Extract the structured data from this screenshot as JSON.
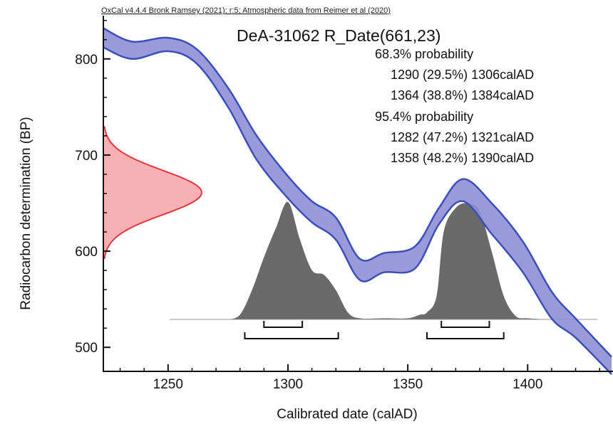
{
  "chart_data": {
    "type": "area",
    "credit": "OxCal v4.4.4 Bronk Ramsey (2021); r:5; Atmospheric data from Reimer et al (2020)",
    "title": "DeA-31062 R_Date(661,23)",
    "xlabel": "Calibrated date (calAD)",
    "ylabel": "Radiocarbon determination (BP)",
    "xlim": [
      1223,
      1435
    ],
    "ylim": [
      475,
      845
    ],
    "xticks": [
      1250,
      1300,
      1350,
      1400
    ],
    "yticks": [
      500,
      600,
      700,
      800
    ],
    "probability_lines": [
      "68.3% probability",
      "1290 (29.5%) 1306calAD",
      "1364 (38.8%) 1384calAD",
      "95.4% probability",
      "1282 (47.2%) 1321calAD",
      "1358 (48.2%) 1390calAD"
    ],
    "colors": {
      "calibration_band": "#8f8fd6",
      "calibration_edge": "#3a4fb8",
      "radiocarbon_fill": "#f5a3a8",
      "radiocarbon_line": "#e8353b",
      "posterior_fill": "#6a6a6a"
    },
    "calibration_curve": {
      "x": [
        1223,
        1235,
        1250,
        1262,
        1275,
        1287,
        1300,
        1310,
        1320,
        1330,
        1340,
        1353,
        1363,
        1373,
        1385,
        1398,
        1410,
        1420,
        1435
      ],
      "upper": [
        832,
        818,
        822,
        810,
        770,
        720,
        678,
        652,
        635,
        592,
        598,
        605,
        645,
        675,
        650,
        610,
        558,
        530,
        490
      ],
      "lower": [
        812,
        800,
        808,
        795,
        750,
        695,
        655,
        630,
        612,
        570,
        578,
        582,
        628,
        652,
        618,
        578,
        530,
        510,
        472
      ]
    },
    "radiocarbon_distribution": {
      "mean": 661,
      "sigma": 23,
      "range": [
        592,
        730
      ]
    },
    "posterior": {
      "baseline_bp": 529,
      "x_range": [
        1275,
        1410
      ],
      "x": [
        1275,
        1280,
        1285,
        1290,
        1295,
        1300,
        1305,
        1310,
        1315,
        1320,
        1325,
        1330,
        1340,
        1350,
        1355,
        1358,
        1362,
        1365,
        1370,
        1375,
        1380,
        1385,
        1390,
        1395,
        1400,
        1410
      ],
      "density": [
        0,
        0.04,
        0.25,
        0.53,
        0.78,
        1.0,
        0.68,
        0.42,
        0.38,
        0.25,
        0.06,
        0.01,
        0.01,
        0.01,
        0.04,
        0.06,
        0.2,
        0.75,
        0.95,
        0.99,
        0.92,
        0.58,
        0.2,
        0.03,
        0.01,
        0
      ]
    },
    "ranges_68": [
      [
        1290,
        1306
      ],
      [
        1364,
        1384
      ]
    ],
    "ranges_95": [
      [
        1282,
        1321
      ],
      [
        1358,
        1390
      ]
    ]
  }
}
